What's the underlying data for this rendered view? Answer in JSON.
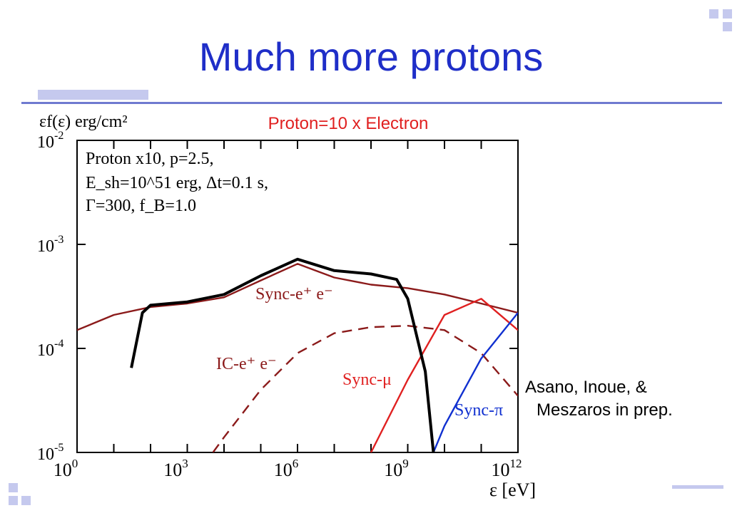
{
  "slide": {
    "title": "Much more protons",
    "credit_line1": "Asano, Inoue, &",
    "credit_line2": "Meszaros in prep."
  },
  "colors": {
    "title": "#1f2ec8",
    "accent_decor": "#c5c9ee",
    "rule": "#6f7ad0",
    "sync_e": "#8b1a1a",
    "ic_e": "#8b1a1a",
    "sync_mu": "#e02020",
    "sync_pi": "#1030d0",
    "total": "#000000",
    "subtitle": "#e02020"
  },
  "chart_data": {
    "type": "line",
    "subtitle": "Proton=10 x Electron",
    "ylabel": "εf(ε) erg/cm²",
    "xlabel": "ε [eV]",
    "x_scale": "log",
    "y_scale": "log",
    "xlim": [
      1,
      1000000000000.0
    ],
    "ylim": [
      1e-05,
      0.01
    ],
    "x_ticks": [
      {
        "label": "10",
        "exp": "0"
      },
      {
        "label": "10",
        "exp": "3"
      },
      {
        "label": "10",
        "exp": "6"
      },
      {
        "label": "10",
        "exp": "9"
      },
      {
        "label": "10",
        "exp": "12"
      }
    ],
    "y_ticks": [
      {
        "label": "10",
        "exp": "-2"
      },
      {
        "label": "10",
        "exp": "-3"
      },
      {
        "label": "10",
        "exp": "-4"
      },
      {
        "label": "10",
        "exp": "-5"
      }
    ],
    "params": [
      "Proton x10, p=2.5,",
      "E_sh=10^51 erg, Δt=0.1 s,",
      "Γ=300, f_B=1.0"
    ],
    "series": [
      {
        "name": "Sync-e⁺ e⁻",
        "style": "solid",
        "x": [
          1,
          10,
          100,
          1000.0,
          10000.0,
          100000.0,
          1000000.0,
          10000000.0,
          100000000.0,
          1000000000.0,
          10000000000.0,
          100000000000.0,
          1000000000000.0
        ],
        "y": [
          0.00015,
          0.00021,
          0.00025,
          0.00027,
          0.00031,
          0.00045,
          0.00065,
          0.00048,
          0.00041,
          0.00038,
          0.00033,
          0.00027,
          0.00022
        ]
      },
      {
        "name": "IC-e⁺ e⁻",
        "style": "dashed",
        "x": [
          5000.0,
          10000.0,
          100000.0,
          1000000.0,
          10000000.0,
          100000000.0,
          1000000000.0,
          10000000000.0,
          100000000000.0,
          1000000000000.0
        ],
        "y": [
          1e-05,
          1.4e-05,
          4e-05,
          9e-05,
          0.00014,
          0.00016,
          0.000165,
          0.00015,
          9e-05,
          3.5e-05
        ]
      },
      {
        "name": "Sync-μ",
        "style": "solid",
        "x": [
          100000000.0,
          1000000000.0,
          10000000000.0,
          100000000000.0,
          1000000000000.0
        ],
        "y": [
          1e-05,
          5e-05,
          0.00021,
          0.0003,
          0.00015
        ]
      },
      {
        "name": "Sync-π",
        "style": "solid",
        "x": [
          5000000000.0,
          10000000000.0,
          100000000000.0,
          1000000000000.0
        ],
        "y": [
          1e-05,
          1.8e-05,
          8e-05,
          0.00022
        ]
      },
      {
        "name": "",
        "style": "solid",
        "x": [
          30,
          60,
          100,
          1000.0,
          10000.0,
          100000.0,
          1000000.0,
          10000000.0,
          100000000.0,
          500000000.0,
          1000000000.0,
          3000000000.0,
          5000000000.0
        ],
        "y": [
          6.5e-05,
          0.00022,
          0.00026,
          0.00028,
          0.00033,
          0.0005,
          0.00072,
          0.00056,
          0.00052,
          0.00046,
          0.0003,
          6e-05,
          1e-05
        ]
      }
    ]
  }
}
